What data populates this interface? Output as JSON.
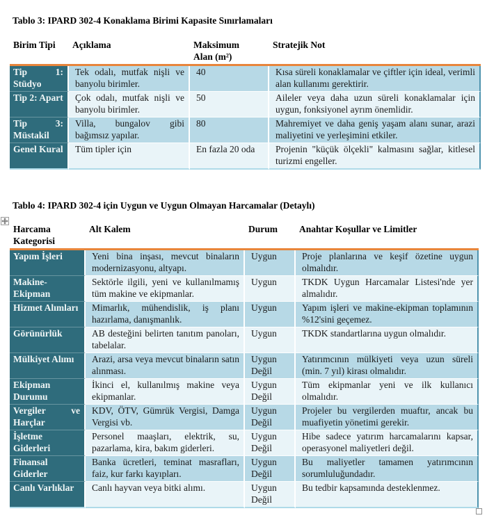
{
  "colors": {
    "accent_orange": "#E8853B",
    "dark_teal_column": "#2F6C7C",
    "row_blue": "#B7D9E6",
    "row_light": "#E9F4F8",
    "table_right_border": "#4E93AE",
    "table_bottom_border": "#AEDAE8"
  },
  "table3": {
    "title": "Tablo 3: IPARD 302-4 Konaklama Birimi Kapasite Sınırlamaları",
    "headers": [
      "Birim Tipi",
      "Açıklama",
      "Maksimum Alan (m²)",
      "Stratejik Not"
    ],
    "rows": [
      {
        "category": "Tip 1: Stüdyo",
        "desc": "Tek odalı, mutfak nişli ve banyolu birimler.",
        "max": "40",
        "note": "Kısa süreli konaklamalar ve çiftler için ideal, verimli alan kullanımı gerektirir."
      },
      {
        "category": "Tip 2: Apart",
        "desc": "Çok odalı, mutfak nişli ve banyolu birimler.",
        "max": "50",
        "note": "Aileler veya daha uzun süreli konaklamalar için uygun, fonksiyonel ayrım önemlidir."
      },
      {
        "category": "Tip 3: Müstakil",
        "desc": "Villa, bungalov gibi bağımsız yapılar.",
        "max": "80",
        "note": "Mahremiyet ve daha geniş yaşam alanı sunar, arazi maliyetini ve yerleşimini etkiler."
      },
      {
        "category": "Genel Kural",
        "desc": "Tüm tipler için",
        "max": "En fazla 20 oda",
        "note": "Projenin \"küçük ölçekli\" kalmasını sağlar, kitlesel turizmi engeller."
      }
    ]
  },
  "table4": {
    "title": "Tablo 4: IPARD 302-4 için Uygun ve Uygun Olmayan Harcamalar (Detaylı)",
    "headers": [
      "Harcama Kategorisi",
      "Alt Kalem",
      "Durum",
      "Anahtar Koşullar ve Limitler"
    ],
    "rows": [
      {
        "category": "Yapım İşleri",
        "item": "Yeni bina inşası, mevcut binaların modernizasyonu, altyapı.",
        "status": "Uygun",
        "conditions": "Proje planlarına ve keşif özetine uygun olmalıdır."
      },
      {
        "category": "Makine-Ekipman",
        "item": "Sektörle ilgili, yeni ve kullanılmamış tüm makine ve ekipmanlar.",
        "status": "Uygun",
        "conditions": "TKDK Uygun Harcamalar Listesi'nde yer almalıdır."
      },
      {
        "category": "Hizmet Alımları",
        "item": "Mimarlık, mühendislik, iş planı hazırlama, danışmanlık.",
        "status": "Uygun",
        "conditions": "Yapım işleri ve makine-ekipman toplamının %12'sini geçemez."
      },
      {
        "category": "Görünürlük",
        "item": "AB desteğini belirten tanıtım panoları, tabelalar.",
        "status": "Uygun",
        "conditions": "TKDK standartlarına uygun olmalıdır."
      },
      {
        "category": "Mülkiyet Alımı",
        "item": "Arazi, arsa veya mevcut binaların satın alınması.",
        "status": "Uygun Değil",
        "conditions": "Yatırımcının mülkiyeti veya uzun süreli (min. 7 yıl) kirası olmalıdır."
      },
      {
        "category": "Ekipman Durumu",
        "item": "İkinci el, kullanılmış makine veya ekipmanlar.",
        "status": "Uygun Değil",
        "conditions": "Tüm ekipmanlar yeni ve ilk kullanıcı olmalıdır."
      },
      {
        "category": "Vergiler ve Harçlar",
        "item": "KDV, ÖTV, Gümrük Vergisi, Damga Vergisi vb.",
        "status": "Uygun Değil",
        "conditions": "Projeler bu vergilerden muaftır, ancak bu muafiyetin yönetimi gerekir."
      },
      {
        "category": "İşletme Giderleri",
        "item": "Personel maaşları, elektrik, su, pazarlama, kira, bakım giderleri.",
        "status": "Uygun Değil",
        "conditions": "Hibe sadece yatırım harcamalarını kapsar, operasyonel maliyetleri değil."
      },
      {
        "category": "Finansal Giderler",
        "item": "Banka ücretleri, teminat masrafları, faiz, kur farkı kayıpları.",
        "status": "Uygun Değil",
        "conditions": "Bu maliyetler tamamen yatırımcının sorumluluğundadır."
      },
      {
        "category": "Canlı Varlıklar",
        "item": "Canlı hayvan veya bitki alımı.",
        "status": "Uygun Değil",
        "conditions": "Bu tedbir kapsamında desteklenmez."
      }
    ]
  },
  "icons": {
    "move_handle": "table-move-handle-icon",
    "resize_handle": "table-resize-handle"
  }
}
